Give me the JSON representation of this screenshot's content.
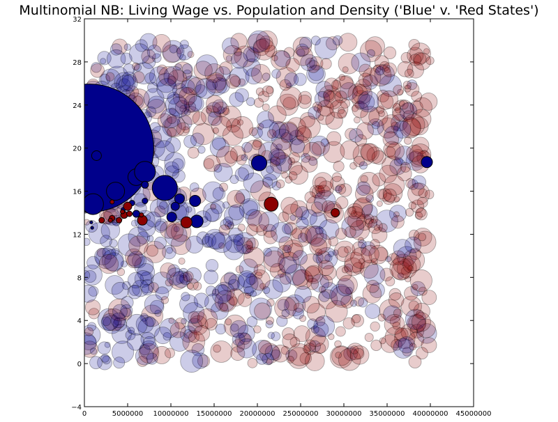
{
  "chart_data": {
    "type": "scatter",
    "title": "Multinomial NB: Living Wage vs. Population and Density ('Blue' v. 'Red States')",
    "xlabel": "",
    "ylabel": "",
    "xlim": [
      0,
      45000000
    ],
    "ylim": [
      -4,
      32
    ],
    "x_ticks": [
      0,
      5000000,
      10000000,
      15000000,
      20000000,
      25000000,
      30000000,
      35000000,
      40000000,
      45000000
    ],
    "x_tick_labels": [
      "0",
      "5000000",
      "10000000",
      "15000000",
      "20000000",
      "25000000",
      "30000000",
      "35000000",
      "40000000",
      "45000000"
    ],
    "y_ticks": [
      -4,
      0,
      4,
      8,
      12,
      16,
      20,
      24,
      28,
      32
    ],
    "y_tick_labels": [
      "−4",
      "0",
      "4",
      "8",
      "12",
      "16",
      "20",
      "24",
      "28",
      "32"
    ],
    "grid": false,
    "legend": "none",
    "colors": {
      "blue": "#00008b",
      "red": "#8b0000",
      "edge": "#000000"
    },
    "background_points": {
      "count": 1100,
      "x_range": [
        0,
        40000000
      ],
      "y_range": [
        0,
        30
      ],
      "alpha": 0.2,
      "note_density": "blue concentrated at low x, red concentrated at high x"
    },
    "highlighted_points": [
      {
        "x": 600000,
        "y": 20,
        "size": 92,
        "color": "blue"
      },
      {
        "x": 1400000,
        "y": 19.3,
        "size": 7,
        "color": "blue"
      },
      {
        "x": 1000000,
        "y": 14.8,
        "size": 15,
        "color": "blue"
      },
      {
        "x": 3600000,
        "y": 16,
        "size": 13,
        "color": "blue"
      },
      {
        "x": 6000000,
        "y": 17.3,
        "size": 12,
        "color": "blue"
      },
      {
        "x": 7000000,
        "y": 17.8,
        "size": 15,
        "color": "blue"
      },
      {
        "x": 9300000,
        "y": 16.3,
        "size": 18,
        "color": "blue"
      },
      {
        "x": 11000000,
        "y": 15.3,
        "size": 7,
        "color": "blue"
      },
      {
        "x": 10500000,
        "y": 14.6,
        "size": 6,
        "color": "blue"
      },
      {
        "x": 12800000,
        "y": 15.1,
        "size": 8,
        "color": "blue"
      },
      {
        "x": 10100000,
        "y": 13.6,
        "size": 7,
        "color": "blue"
      },
      {
        "x": 13000000,
        "y": 13.2,
        "size": 9,
        "color": "blue"
      },
      {
        "x": 20200000,
        "y": 18.6,
        "size": 11,
        "color": "blue"
      },
      {
        "x": 39600000,
        "y": 18.7,
        "size": 8,
        "color": "blue"
      },
      {
        "x": 7000000,
        "y": 16.6,
        "size": 5,
        "color": "blue"
      },
      {
        "x": 5500000,
        "y": 14.9,
        "size": 4,
        "color": "blue"
      },
      {
        "x": 7000000,
        "y": 15.1,
        "size": 4,
        "color": "blue"
      },
      {
        "x": 6000000,
        "y": 13.9,
        "size": 5,
        "color": "blue"
      },
      {
        "x": 4500000,
        "y": 14.3,
        "size": 3,
        "color": "blue"
      },
      {
        "x": 800000,
        "y": 13.1,
        "size": 2,
        "color": "blue"
      },
      {
        "x": 900000,
        "y": 12.6,
        "size": 2,
        "color": "blue"
      },
      {
        "x": 21600000,
        "y": 14.8,
        "size": 10,
        "color": "red"
      },
      {
        "x": 29000000,
        "y": 14,
        "size": 6,
        "color": "red"
      },
      {
        "x": 5000000,
        "y": 14.6,
        "size": 6,
        "color": "red"
      },
      {
        "x": 11800000,
        "y": 13.1,
        "size": 8,
        "color": "red"
      },
      {
        "x": 6700000,
        "y": 13.3,
        "size": 7,
        "color": "red"
      },
      {
        "x": 4600000,
        "y": 13.8,
        "size": 5,
        "color": "red"
      },
      {
        "x": 5200000,
        "y": 13.9,
        "size": 4,
        "color": "red"
      },
      {
        "x": 3200000,
        "y": 13.5,
        "size": 4,
        "color": "red"
      },
      {
        "x": 4000000,
        "y": 13.3,
        "size": 4,
        "color": "red"
      },
      {
        "x": 2000000,
        "y": 13.3,
        "size": 4,
        "color": "red"
      },
      {
        "x": 3000000,
        "y": 13.3,
        "size": 3,
        "color": "red"
      },
      {
        "x": 3200000,
        "y": 15,
        "size": 3,
        "color": "red"
      },
      {
        "x": 6600000,
        "y": 13.8,
        "size": 3,
        "color": "red"
      },
      {
        "x": 4400000,
        "y": 14.1,
        "size": 3,
        "color": "red"
      }
    ]
  }
}
